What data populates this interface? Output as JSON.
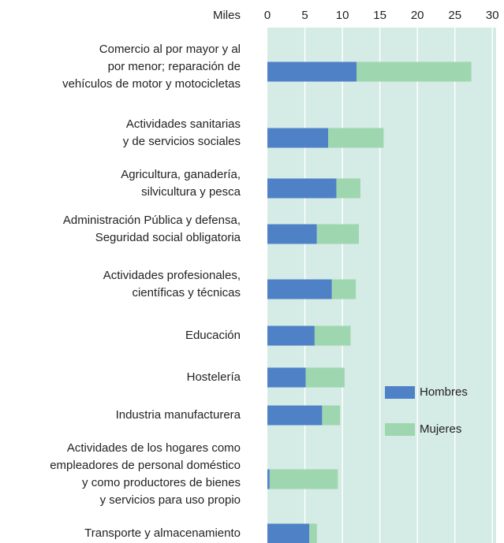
{
  "chart_data": {
    "type": "stacked-bar-horizontal",
    "x_label": "Miles",
    "categories": [
      [
        "Comercio al por mayor y al",
        "por menor; reparación de",
        "vehículos de motor y motocicletas"
      ],
      [
        "Actividades sanitarias",
        "y de servicios sociales"
      ],
      [
        "Agricultura, ganadería,",
        "silvicultura y pesca"
      ],
      [
        "Administración Pública y defensa,",
        "Seguridad social obligatoria"
      ],
      [
        "Actividades profesionales,",
        "científicas y técnicas"
      ],
      [
        "Educación"
      ],
      [
        "Hostelería"
      ],
      [
        "Industria manufacturera"
      ],
      [
        "Actividades de los hogares como",
        "empleadores de personal doméstico",
        "y como productores de bienes",
        "y servicios para uso propio"
      ],
      [
        "Transporte y almacenamiento"
      ]
    ],
    "series": [
      {
        "name": "Hombres",
        "color": "#4f81c7",
        "values": [
          11.9,
          8.1,
          9.2,
          6.6,
          8.6,
          6.3,
          5.1,
          7.3,
          0.3,
          5.6
        ]
      },
      {
        "name": "Mujeres",
        "color": "#9ed6b0",
        "values": [
          15.3,
          7.4,
          3.2,
          5.6,
          3.2,
          4.8,
          5.2,
          2.4,
          9.1,
          1.0
        ]
      }
    ],
    "xlim": [
      0,
      30.5
    ],
    "xticks": [
      0,
      5,
      10,
      15,
      20,
      25,
      30
    ],
    "grid": true,
    "legend": "right"
  }
}
